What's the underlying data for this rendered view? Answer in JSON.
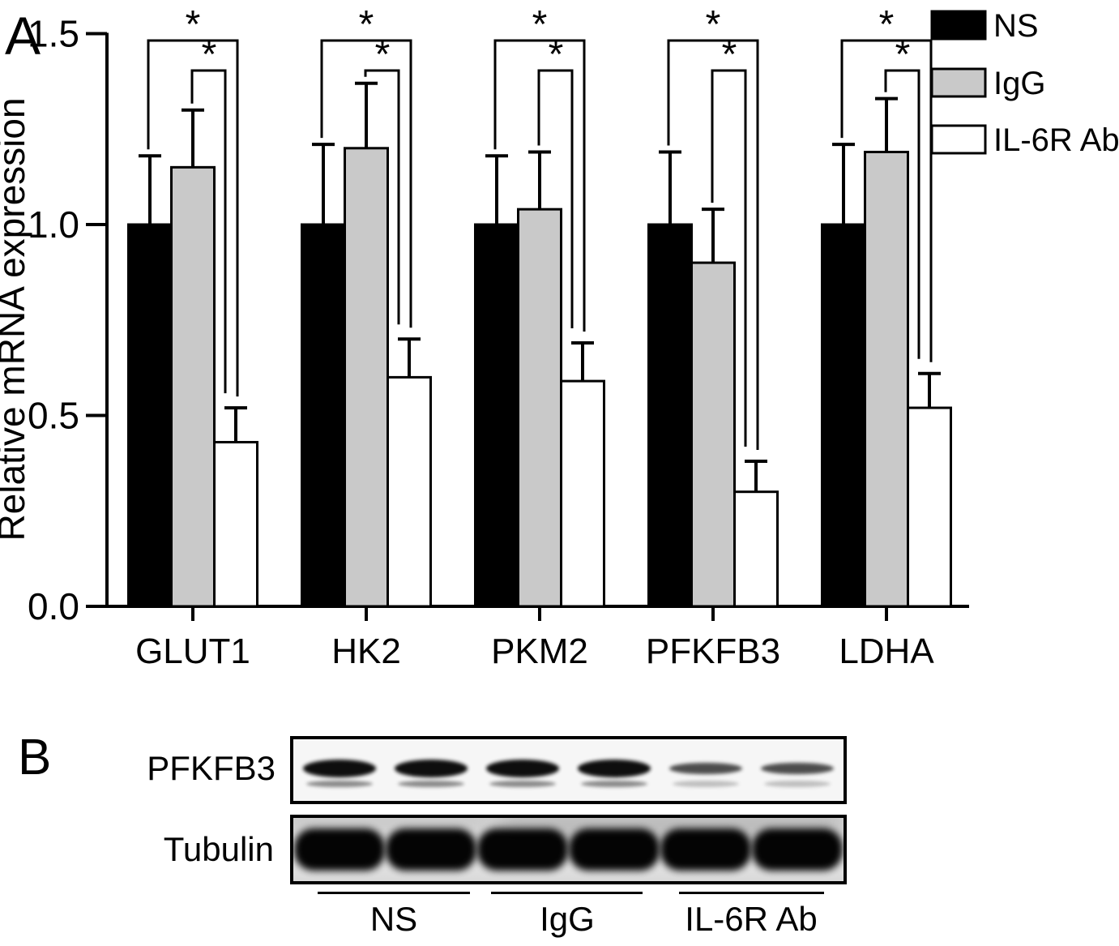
{
  "panels": {
    "a_label": "A",
    "b_label": "B"
  },
  "chart_data": {
    "type": "bar",
    "title": "",
    "xlabel": "",
    "ylabel": "Relative mRNA expression",
    "ylim": [
      0,
      1.5
    ],
    "ytick_labels": [
      "0.0",
      "0.5",
      "1.0",
      "1.5"
    ],
    "grid": false,
    "categories": [
      "GLUT1",
      "HK2",
      "PKM2",
      "PFKFB3",
      "LDHA"
    ],
    "series": [
      {
        "name": "NS",
        "fill": "#000000",
        "values": [
          1.0,
          1.0,
          1.0,
          1.0,
          1.0
        ],
        "errors": [
          0.18,
          0.21,
          0.18,
          0.19,
          0.21
        ]
      },
      {
        "name": "IgG",
        "fill": "#c9c9c9",
        "values": [
          1.15,
          1.2,
          1.04,
          0.9,
          1.19
        ],
        "errors": [
          0.15,
          0.17,
          0.15,
          0.14,
          0.14
        ]
      },
      {
        "name": "IL-6R Ab",
        "fill": "#ffffff",
        "values": [
          0.43,
          0.6,
          0.59,
          0.3,
          0.52
        ],
        "errors": [
          0.09,
          0.1,
          0.1,
          0.08,
          0.09
        ]
      }
    ],
    "legend": {
      "position": "top-right",
      "items": [
        "NS",
        "IgG",
        "IL-6R Ab"
      ]
    },
    "significance": {
      "marker": "*",
      "per_category_comparisons": [
        {
          "pair": [
            "NS",
            "IL-6R Ab"
          ],
          "label": "*"
        },
        {
          "pair": [
            "IgG",
            "IL-6R Ab"
          ],
          "label": "*"
        }
      ],
      "applies_to": "every category"
    }
  },
  "panel_b": {
    "blots": [
      {
        "label": "PFKFB3",
        "lanes": [
          "strong",
          "strong",
          "strong",
          "strong",
          "weak",
          "weak"
        ]
      },
      {
        "label": "Tubulin",
        "lanes": [
          "strong",
          "strong",
          "strong",
          "strong",
          "strong",
          "strong"
        ]
      }
    ],
    "lane_groups": [
      "NS",
      "IgG",
      "IL-6R Ab"
    ]
  },
  "colors": {
    "ns_bar": "#000000",
    "igg_bar": "#c9c9c9",
    "il6r_bar": "#ffffff",
    "stroke": "#000000",
    "background": "#ffffff"
  }
}
